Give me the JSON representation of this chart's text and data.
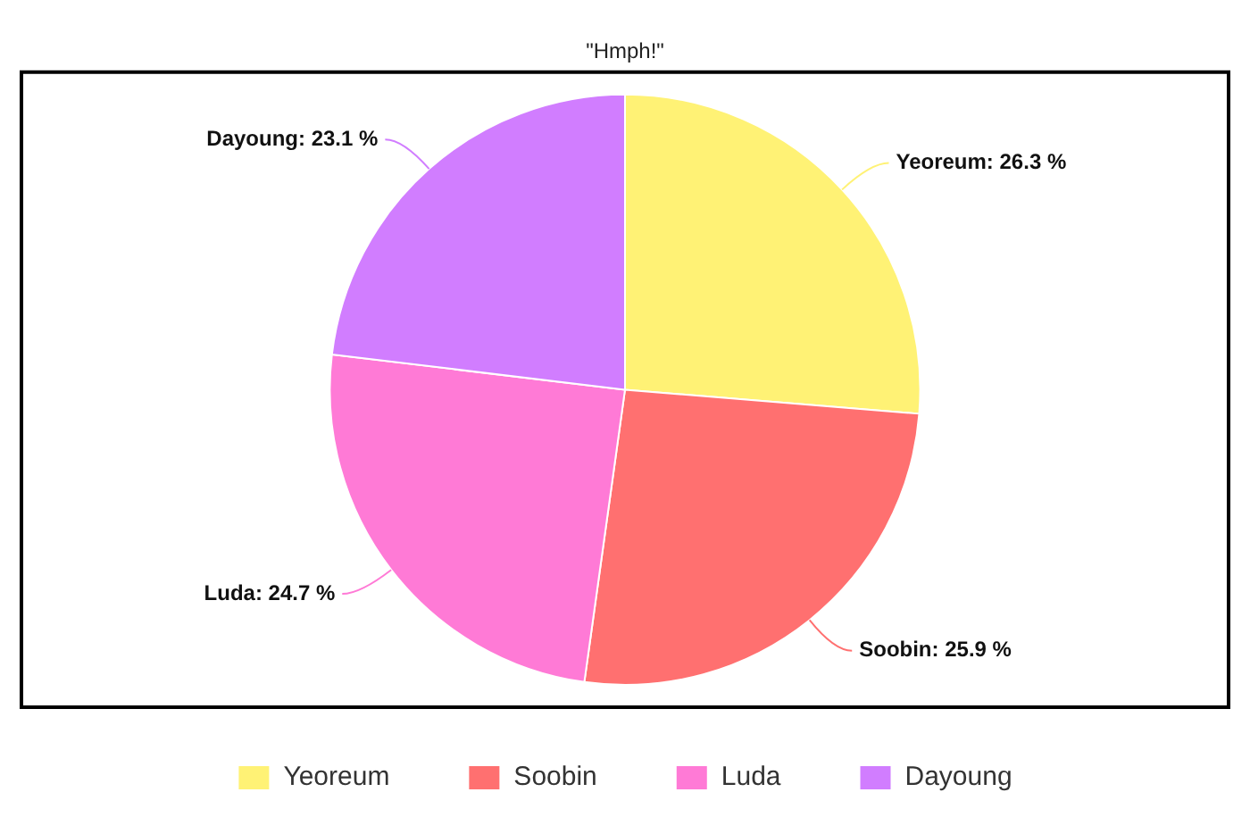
{
  "chart_data": {
    "type": "pie",
    "title": "\"Hmph!\"",
    "categories": [
      "Yeoreum",
      "Soobin",
      "Luda",
      "Dayoung"
    ],
    "values": [
      26.3,
      25.9,
      24.7,
      23.1
    ],
    "colors": [
      "#fff275",
      "#ff7070",
      "#ff7ad6",
      "#d17dff"
    ],
    "value_labels": [
      "Yeoreum: 26.3 %",
      "Soobin: 25.9 %",
      "Luda: 24.7 %",
      "Dayoung: 23.1 %"
    ],
    "legend": "bottom"
  }
}
